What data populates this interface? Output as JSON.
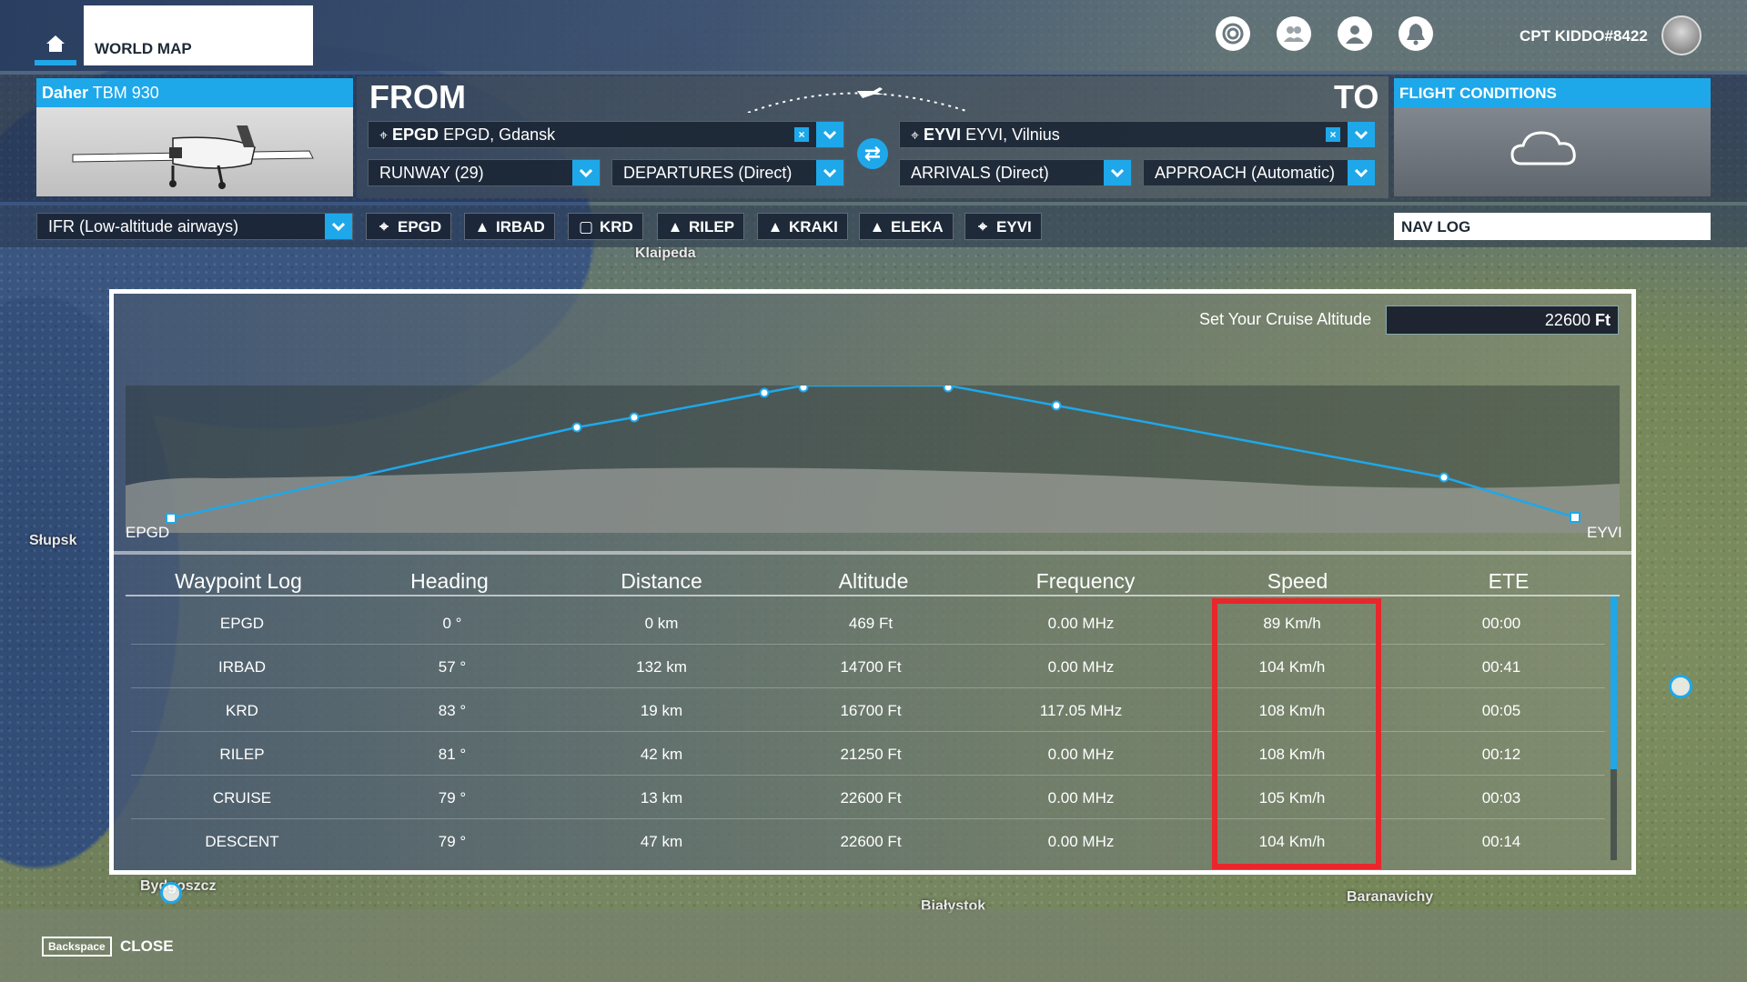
{
  "topbar": {
    "tab_label": "WORLD MAP",
    "username": "CPT KIDDO#8422",
    "icons": [
      "home-icon",
      "achievements-icon",
      "friends-icon",
      "profile-icon",
      "notifications-icon"
    ]
  },
  "aircraft": {
    "maker": "Daher",
    "model": "TBM 930"
  },
  "from": {
    "label": "FROM",
    "airport_code": "EPGD",
    "airport_name": "EPGD, Gdansk",
    "runway": "RUNWAY (29)",
    "departure": "DEPARTURES (Direct)"
  },
  "to": {
    "label": "TO",
    "airport_code": "EYVI",
    "airport_name": "EYVI, Vilnius",
    "arrival": "ARRIVALS (Direct)",
    "approach": "APPROACH (Automatic)"
  },
  "flight_conditions": {
    "title": "FLIGHT CONDITIONS",
    "icon": "cloud-icon"
  },
  "route": {
    "flight_type": "IFR (Low-altitude airways)",
    "waypoints": [
      {
        "icon": "airport-icon",
        "name": "EPGD"
      },
      {
        "icon": "intersection-icon",
        "name": "IRBAD"
      },
      {
        "icon": "vor-icon",
        "name": "KRD"
      },
      {
        "icon": "intersection-icon",
        "name": "RILEP"
      },
      {
        "icon": "intersection-icon",
        "name": "KRAKI"
      },
      {
        "icon": "intersection-icon",
        "name": "ELEKA"
      },
      {
        "icon": "airport-icon",
        "name": "EYVI"
      }
    ],
    "navlog_tab": "NAV LOG"
  },
  "map_labels": {
    "klaipeda": "Klaipeda",
    "slupsk": "Słupsk",
    "bydgoszcz": "Bydgoszcz",
    "bialystok": "Białystok",
    "baranavichy": "Baranavichy"
  },
  "navlog": {
    "cruise_label": "Set Your Cruise Altitude",
    "cruise_value": "22600",
    "cruise_unit": "Ft",
    "profile_start": "EPGD",
    "profile_end": "EYVI",
    "columns": [
      "Waypoint Log",
      "Heading",
      "Distance",
      "Altitude",
      "Frequency",
      "Speed",
      "ETE"
    ],
    "rows": [
      {
        "waypoint": "EPGD",
        "heading": "0 °",
        "distance": "0 km",
        "altitude": "469 Ft",
        "frequency": "0.00 MHz",
        "speed": "89 Km/h",
        "ete": "00:00"
      },
      {
        "waypoint": "IRBAD",
        "heading": "57 °",
        "distance": "132 km",
        "altitude": "14700 Ft",
        "frequency": "0.00 MHz",
        "speed": "104 Km/h",
        "ete": "00:41"
      },
      {
        "waypoint": "KRD",
        "heading": "83 °",
        "distance": "19 km",
        "altitude": "16700 Ft",
        "frequency": "117.05 MHz",
        "speed": "108 Km/h",
        "ete": "00:05"
      },
      {
        "waypoint": "RILEP",
        "heading": "81 °",
        "distance": "42 km",
        "altitude": "21250 Ft",
        "frequency": "0.00 MHz",
        "speed": "108 Km/h",
        "ete": "00:12"
      },
      {
        "waypoint": "CRUISE",
        "heading": "79 °",
        "distance": "13 km",
        "altitude": "22600 Ft",
        "frequency": "0.00 MHz",
        "speed": "105 Km/h",
        "ete": "00:03"
      },
      {
        "waypoint": "DESCENT",
        "heading": "79 °",
        "distance": "47 km",
        "altitude": "22600 Ft",
        "frequency": "0.00 MHz",
        "speed": "104 Km/h",
        "ete": "00:14"
      }
    ]
  },
  "bottom": {
    "key": "Backspace",
    "close_label": "CLOSE"
  },
  "colors": {
    "accent": "#1ea8ea",
    "highlight": "#e8262b"
  }
}
